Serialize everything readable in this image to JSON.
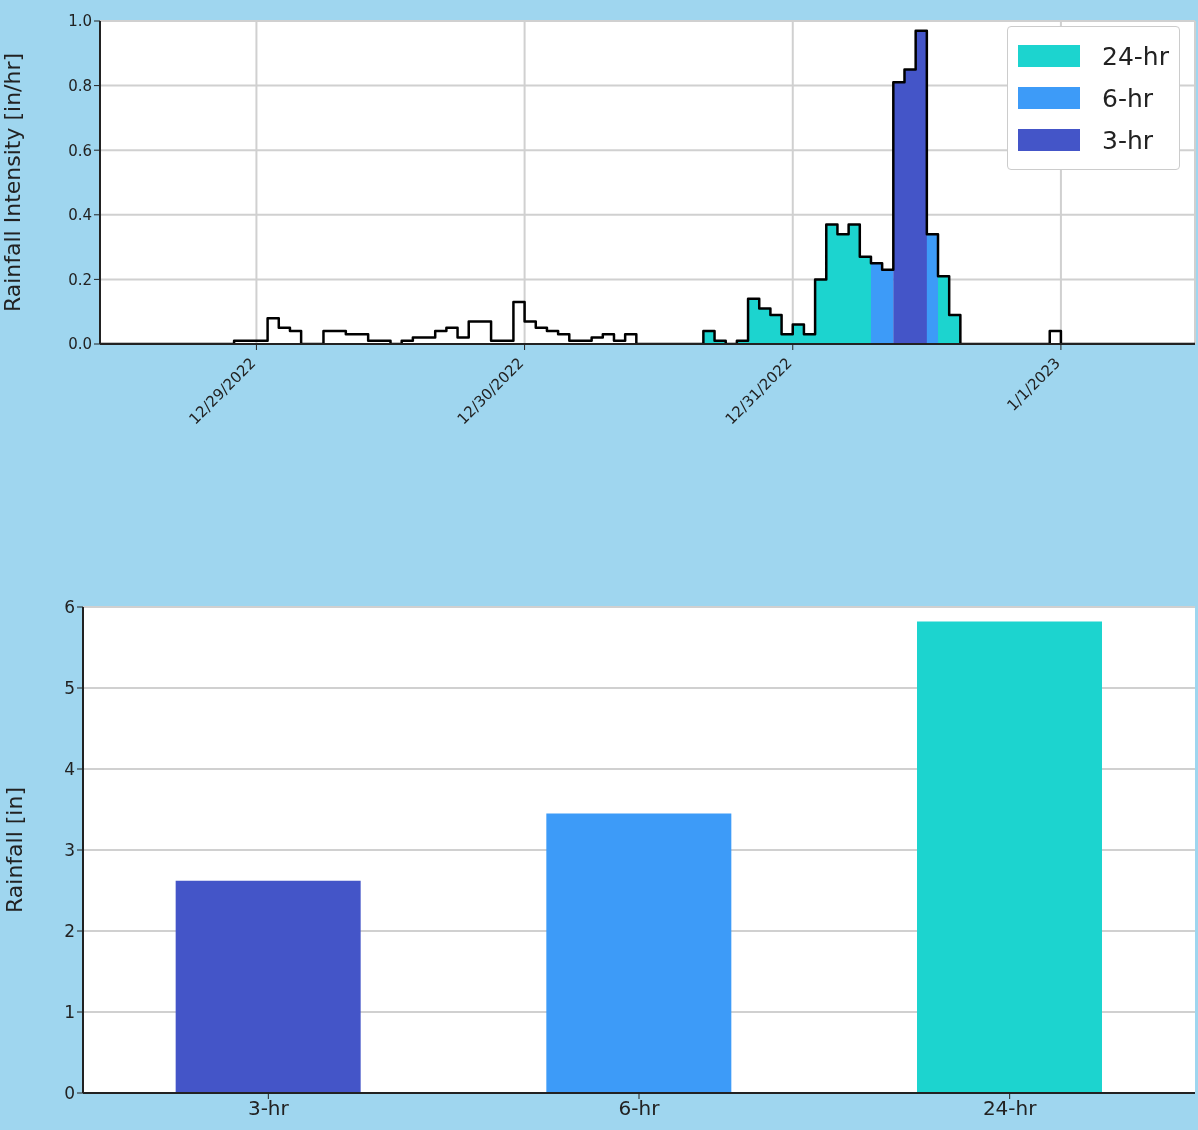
{
  "chart_data": [
    {
      "type": "step",
      "ylabel": "Rainfall Intensity [in/hr]",
      "xlim": [
        "2022-12-28T10:00",
        "2023-01-01T12:00"
      ],
      "xticks": [
        {
          "value": "2022-12-29",
          "label": "12/29/2022"
        },
        {
          "value": "2022-12-30",
          "label": "12/30/2022"
        },
        {
          "value": "2022-12-31",
          "label": "12/31/2022"
        },
        {
          "value": "2023-01-01",
          "label": "1/1/2023"
        }
      ],
      "ylim": [
        0,
        1
      ],
      "yticks": [
        {
          "value": 0,
          "label": "0.0"
        },
        {
          "value": 0.2,
          "label": "0.2"
        },
        {
          "value": 0.4,
          "label": "0.4"
        },
        {
          "value": 0.6,
          "label": "0.6"
        },
        {
          "value": 0.8,
          "label": "0.8"
        },
        {
          "value": 1,
          "label": "1.0"
        }
      ],
      "grid": true,
      "legend": "top right",
      "series": [
        {
          "type": "area",
          "name": "24-hr",
          "color": "#1cd4cf",
          "x": [
            "2022-12-30T16:00",
            "2022-12-30T17:00",
            "2022-12-30T18:00",
            "2022-12-30T19:00",
            "2022-12-30T20:00",
            "2022-12-30T21:00",
            "2022-12-30T22:00",
            "2022-12-30T23:00",
            "2022-12-31T00:00",
            "2022-12-31T01:00",
            "2022-12-31T02:00",
            "2022-12-31T03:00",
            "2022-12-31T04:00",
            "2022-12-31T05:00",
            "2022-12-31T06:00",
            "2022-12-31T07:00",
            "2022-12-31T08:00",
            "2022-12-31T09:00",
            "2022-12-31T10:00",
            "2022-12-31T11:00",
            "2022-12-31T12:00",
            "2022-12-31T13:00",
            "2022-12-31T14:00",
            "2022-12-31T15:00"
          ],
          "values": [
            0.04,
            0.01,
            0,
            0.01,
            0.14,
            0.11,
            0.09,
            0.03,
            0.06,
            0.03,
            0.2,
            0.37,
            0.34,
            0.37,
            0.27,
            0.25,
            0.23,
            0.81,
            null,
            0.97,
            0.34,
            0.21,
            0.09,
            0
          ]
        },
        {
          "type": "area",
          "name": "6-hr",
          "color": "#3d9bf8",
          "x": [
            "2022-12-31T07:00",
            "2022-12-31T08:00",
            "2022-12-31T09:00",
            "2022-12-31T10:00",
            "2022-12-31T11:00",
            "2022-12-31T12:00",
            "2022-12-31T13:00"
          ],
          "values": [
            0.25,
            0.23,
            0.81,
            null,
            0.97,
            0.34,
            0.21
          ]
        },
        {
          "type": "area",
          "name": "3-hr",
          "color": "#4455c8",
          "x": [
            "2022-12-31T09:00",
            "2022-12-31T10:00",
            "2022-12-31T11:00",
            "2022-12-31T12:00"
          ],
          "values": [
            0.81,
            0.85,
            0.97,
            0.34
          ]
        },
        {
          "type": "step",
          "color": "#000000",
          "x": [
            "2022-12-28T10:00",
            "2022-12-28T22:00",
            "2022-12-29T01:00",
            "2022-12-29T02:00",
            "2022-12-29T03:00",
            "2022-12-29T04:00",
            "2022-12-29T06:00",
            "2022-12-29T08:00",
            "2022-12-29T10:00",
            "2022-12-29T12:00",
            "2022-12-29T13:00",
            "2022-12-29T14:00",
            "2022-12-29T16:00",
            "2022-12-29T17:00",
            "2022-12-29T18:00",
            "2022-12-29T19:00",
            "2022-12-29T21:00",
            "2022-12-29T23:00",
            "2022-12-30T00:00",
            "2022-12-30T01:00",
            "2022-12-30T02:00",
            "2022-12-30T03:00",
            "2022-12-30T04:00",
            "2022-12-30T06:00",
            "2022-12-30T07:00",
            "2022-12-30T08:00",
            "2022-12-30T09:00",
            "2022-12-30T10:00",
            "2022-12-30T16:00",
            "2022-12-30T17:00",
            "2022-12-30T18:00",
            "2022-12-30T19:00",
            "2022-12-30T20:00",
            "2022-12-30T21:00",
            "2022-12-30T22:00",
            "2022-12-30T23:00",
            "2022-12-31T00:00",
            "2022-12-31T01:00",
            "2022-12-31T02:00",
            "2022-12-31T03:00",
            "2022-12-31T04:00",
            "2022-12-31T05:00",
            "2022-12-31T06:00",
            "2022-12-31T07:00",
            "2022-12-31T08:00",
            "2022-12-31T09:00",
            "2022-12-31T10:00",
            "2022-12-31T11:00",
            "2022-12-31T12:00",
            "2022-12-31T13:00",
            "2022-12-31T14:00",
            "2022-12-31T15:00",
            "2022-12-31T23:00",
            "2023-01-01T00:00",
            "2023-01-01T12:00"
          ],
          "values": [
            0,
            0.01,
            0.08,
            0.05,
            0.04,
            0,
            0.04,
            0.03,
            0.01,
            0,
            0.01,
            0.02,
            0.04,
            0.05,
            0.02,
            0.07,
            0.01,
            0.13,
            0.07,
            0.05,
            0.04,
            0.03,
            0.01,
            0.02,
            0.03,
            0.01,
            0.03,
            0,
            0.04,
            0.01,
            0,
            0.01,
            0.14,
            0.11,
            0.09,
            0.03,
            0.06,
            0.03,
            0.2,
            0.37,
            0.34,
            0.37,
            0.27,
            0.25,
            0.23,
            0.81,
            0.85,
            0.97,
            0.34,
            0.21,
            0.09,
            0,
            0.04,
            0,
            0
          ]
        }
      ]
    },
    {
      "type": "bar",
      "ylabel": "Rainfall [in]",
      "categories": [
        "3-hr",
        "6-hr",
        "24-hr"
      ],
      "values": [
        2.62,
        3.45,
        5.82
      ],
      "colors": [
        "#4455c8",
        "#3d9bf8",
        "#1cd4cf"
      ],
      "ylim": [
        0,
        6
      ],
      "yticks": [
        0,
        1,
        2,
        3,
        4,
        5,
        6
      ],
      "grid": "y"
    }
  ]
}
